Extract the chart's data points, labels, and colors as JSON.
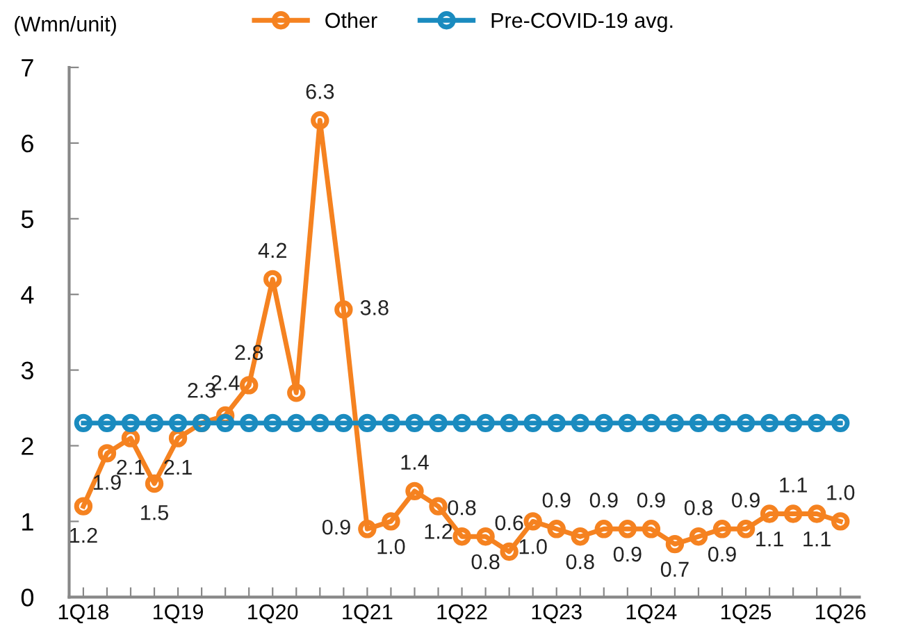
{
  "chart_data": {
    "type": "line",
    "ylabel": "(Wmn/unit)",
    "categories": [
      "1Q18",
      null,
      null,
      null,
      "1Q19",
      null,
      null,
      null,
      "1Q20",
      null,
      null,
      null,
      "1Q21",
      null,
      null,
      null,
      "1Q22",
      null,
      null,
      null,
      "1Q23",
      null,
      null,
      null,
      "1Q24",
      null,
      null,
      null,
      "1Q25",
      null,
      null,
      null,
      "1Q26"
    ],
    "series": [
      {
        "name": "Other",
        "color": "#f58220",
        "values": [
          1.2,
          1.9,
          2.1,
          1.5,
          2.1,
          2.3,
          2.4,
          2.8,
          4.2,
          2.7,
          6.3,
          3.8,
          0.9,
          1.0,
          1.4,
          1.2,
          0.8,
          0.8,
          0.6,
          1.0,
          0.9,
          0.8,
          0.9,
          0.9,
          0.9,
          0.7,
          0.8,
          0.9,
          0.9,
          1.1,
          1.1,
          1.1,
          1.0
        ],
        "value_labels": [
          "1.2",
          "1.9",
          "2.1",
          "1.5",
          "2.1",
          "2.3",
          "2.4",
          "2.8",
          "4.2",
          null,
          "6.3",
          "3.8",
          "0.9",
          "1.0",
          "1.4",
          "1.2",
          "0.8",
          "0.8",
          "0.6",
          "1.0",
          "0.9",
          "0.8",
          "0.9",
          "0.9",
          "0.9",
          "0.7",
          "0.8",
          "0.9",
          "0.9",
          "1.1",
          "1.1",
          "1.1",
          "1.0"
        ]
      },
      {
        "name": "Pre-COVID-19 avg.",
        "color": "#1a8bbf",
        "values": [
          2.3,
          2.3,
          2.3,
          2.3,
          2.3,
          2.3,
          2.3,
          2.3,
          2.3,
          2.3,
          2.3,
          2.3,
          2.3,
          2.3,
          2.3,
          2.3,
          2.3,
          2.3,
          2.3,
          2.3,
          2.3,
          2.3,
          2.3,
          2.3,
          2.3,
          2.3,
          2.3,
          2.3,
          2.3,
          2.3,
          2.3,
          2.3,
          2.3
        ]
      }
    ],
    "ylim": [
      0,
      7
    ],
    "yticks": [
      0,
      1,
      2,
      3,
      4,
      5,
      6,
      7
    ],
    "grid": false,
    "legend": "top",
    "marker": "circle",
    "line_style": "solid"
  }
}
